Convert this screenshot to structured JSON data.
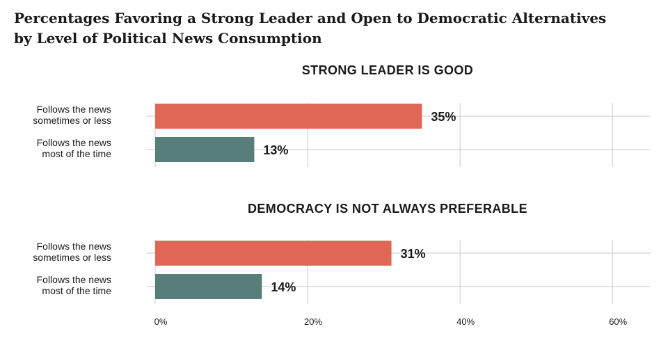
{
  "title_lines": [
    "Percentages Favoring a Strong Leader and Open to Democratic Alternatives",
    "by Level of Political News Consumption"
  ],
  "colors": {
    "sometimes": "#e06656",
    "most": "#577e7a"
  },
  "chart_data": {
    "type": "bar",
    "orientation": "horizontal",
    "xlim": [
      0,
      65
    ],
    "ticks": [
      0,
      20,
      40,
      60
    ],
    "tick_labels": [
      "0%",
      "20%",
      "40%",
      "60%"
    ],
    "grid": true,
    "panels": [
      {
        "title": "STRONG LEADER IS GOOD",
        "bars": [
          {
            "label": [
              "Follows the news",
              "sometimes or less"
            ],
            "value": 35,
            "value_label": "35%",
            "color_key": "sometimes"
          },
          {
            "label": [
              "Follows the news",
              "most of the time"
            ],
            "value": 13,
            "value_label": "13%",
            "color_key": "most"
          }
        ]
      },
      {
        "title": "DEMOCRACY IS NOT ALWAYS PREFERABLE",
        "bars": [
          {
            "label": [
              "Follows the news",
              "sometimes or less"
            ],
            "value": 31,
            "value_label": "31%",
            "color_key": "sometimes"
          },
          {
            "label": [
              "Follows the news",
              "most of the time"
            ],
            "value": 14,
            "value_label": "14%",
            "color_key": "most"
          }
        ]
      }
    ]
  }
}
